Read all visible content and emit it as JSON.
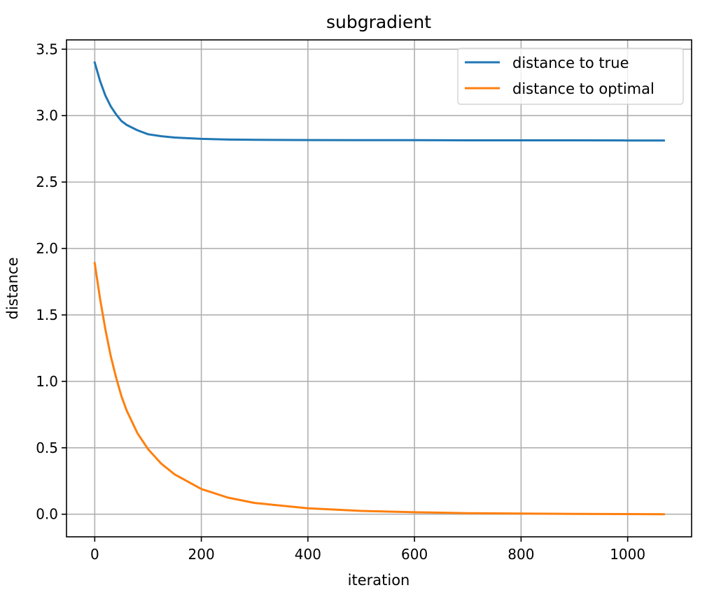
{
  "chart_data": {
    "type": "line",
    "title": "subgradient",
    "xlabel": "iteration",
    "ylabel": "distance",
    "xlim": [
      -53,
      1120
    ],
    "ylim": [
      -0.17,
      3.57
    ],
    "xticks": [
      0,
      200,
      400,
      600,
      800,
      1000
    ],
    "yticks": [
      0.0,
      0.5,
      1.0,
      1.5,
      2.0,
      2.5,
      3.0,
      3.5
    ],
    "xtick_labels": [
      "0",
      "200",
      "400",
      "600",
      "800",
      "1000"
    ],
    "ytick_labels": [
      "0.0",
      "0.5",
      "1.0",
      "1.5",
      "2.0",
      "2.5",
      "3.0",
      "3.5"
    ],
    "grid": true,
    "legend_position": "top-right",
    "series": [
      {
        "name": "distance to true",
        "color": "#1f77b4",
        "x": [
          0,
          10,
          20,
          30,
          40,
          50,
          60,
          80,
          100,
          125,
          150,
          200,
          250,
          300,
          400,
          500,
          600,
          700,
          800,
          900,
          1000,
          1068
        ],
        "y": [
          3.4,
          3.26,
          3.15,
          3.07,
          3.01,
          2.96,
          2.93,
          2.89,
          2.86,
          2.845,
          2.835,
          2.825,
          2.82,
          2.818,
          2.816,
          2.815,
          2.815,
          2.814,
          2.814,
          2.814,
          2.813,
          2.813
        ]
      },
      {
        "name": "distance to optimal",
        "color": "#ff7f0e",
        "x": [
          0,
          10,
          20,
          30,
          40,
          50,
          60,
          80,
          100,
          125,
          150,
          200,
          250,
          300,
          400,
          500,
          600,
          700,
          800,
          900,
          1000,
          1068
        ],
        "y": [
          1.89,
          1.62,
          1.39,
          1.19,
          1.03,
          0.89,
          0.78,
          0.61,
          0.49,
          0.38,
          0.3,
          0.19,
          0.125,
          0.085,
          0.045,
          0.025,
          0.015,
          0.008,
          0.005,
          0.003,
          0.001,
          0.0
        ]
      }
    ]
  }
}
